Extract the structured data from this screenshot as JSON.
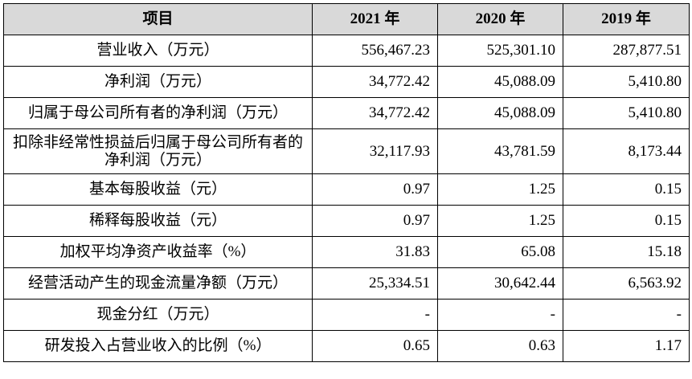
{
  "table": {
    "headers": [
      "项目",
      "2021 年",
      "2020 年",
      "2019 年"
    ],
    "rows": [
      {
        "label": "营业收入（万元）",
        "values": [
          "556,467.23",
          "525,301.10",
          "287,877.51"
        ]
      },
      {
        "label": "净利润（万元）",
        "values": [
          "34,772.42",
          "45,088.09",
          "5,410.80"
        ]
      },
      {
        "label": "归属于母公司所有者的净利润（万元）",
        "values": [
          "34,772.42",
          "45,088.09",
          "5,410.80"
        ]
      },
      {
        "label": "扣除非经常性损益后归属于母公司所有者的净利润（万元）",
        "values": [
          "32,117.93",
          "43,781.59",
          "8,173.44"
        ]
      },
      {
        "label": "基本每股收益（元）",
        "values": [
          "0.97",
          "1.25",
          "0.15"
        ]
      },
      {
        "label": "稀释每股收益（元）",
        "values": [
          "0.97",
          "1.25",
          "0.15"
        ]
      },
      {
        "label": "加权平均净资产收益率（%）",
        "values": [
          "31.83",
          "65.08",
          "15.18"
        ]
      },
      {
        "label": "经营活动产生的现金流量净额（万元）",
        "values": [
          "25,334.51",
          "30,642.44",
          "6,563.92"
        ]
      },
      {
        "label": "现金分红（万元）",
        "values": [
          "-",
          "-",
          "-"
        ]
      },
      {
        "label": "研发投入占营业收入的比例（%）",
        "values": [
          "0.65",
          "0.63",
          "1.17"
        ]
      }
    ]
  }
}
